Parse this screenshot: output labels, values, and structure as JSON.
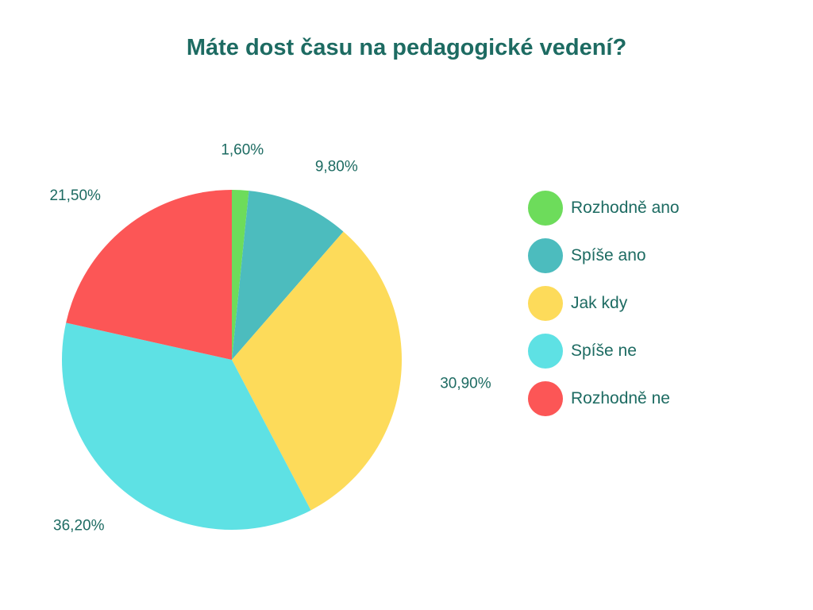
{
  "chart_data": {
    "type": "pie",
    "title": "Máte dost času na pedagogické vedení?",
    "categories": [
      "Rozhodně ano",
      "Spíše ano",
      "Jak kdy",
      "Spíše ne",
      "Rozhodně ne"
    ],
    "values": [
      1.6,
      9.8,
      30.9,
      36.2,
      21.5
    ],
    "data_labels": [
      "1,60%",
      "9,80%",
      "30,90%",
      "36,20%",
      "21,50%"
    ],
    "colors": [
      "#6ddc5b",
      "#4cbcbe",
      "#fddb5a",
      "#5ee1e4",
      "#fc5656"
    ],
    "legend_position": "right",
    "start_angle": "12 o'clock",
    "direction": "clockwise"
  }
}
